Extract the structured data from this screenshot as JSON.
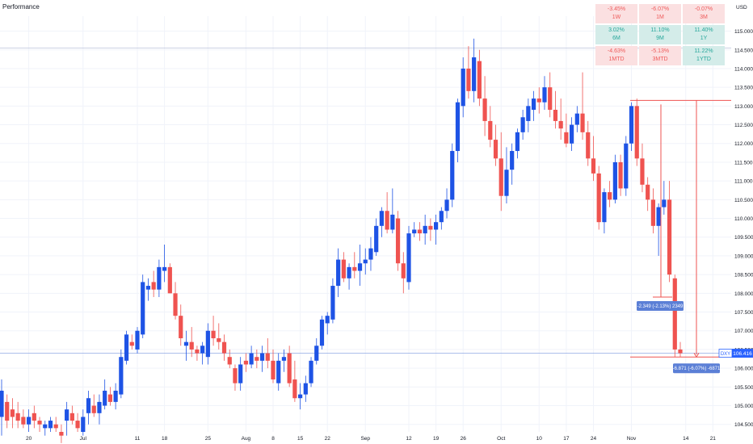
{
  "header": {
    "title": "Performance",
    "currency": "USD"
  },
  "performance": [
    {
      "value": "-3.45%",
      "label": "1W",
      "tone": "neg"
    },
    {
      "value": "-6.07%",
      "label": "1M",
      "tone": "neg"
    },
    {
      "value": "-0.07%",
      "label": "3M",
      "tone": "neg"
    },
    {
      "value": "3.02%",
      "label": "6M",
      "tone": "pos"
    },
    {
      "value": "11.10%",
      "label": "9M",
      "tone": "pos"
    },
    {
      "value": "11.40%",
      "label": "1Y",
      "tone": "pos"
    },
    {
      "value": "-4.63%",
      "label": "1MTD",
      "tone": "neg"
    },
    {
      "value": "-5.13%",
      "label": "3MTD",
      "tone": "neg"
    },
    {
      "value": "11.22%",
      "label": "1YTD",
      "tone": "pos"
    }
  ],
  "colors": {
    "up": "#1e53e5",
    "down": "#ef5350",
    "measure_line": "#ef5350",
    "label_bg": "#5b7fd6",
    "grid": "#f0f3fa",
    "axis_text": "#131722"
  },
  "chart_data": {
    "type": "candlestick",
    "symbol_label": "DXY",
    "last_price": "106.416",
    "ylim": [
      104.3,
      115.4
    ],
    "y_ticks": [
      "104.500",
      "105.000",
      "105.500",
      "106.000",
      "106.500",
      "107.000",
      "107.500",
      "108.000",
      "108.500",
      "109.000",
      "109.500",
      "110.000",
      "110.500",
      "111.000",
      "111.500",
      "112.000",
      "112.500",
      "113.000",
      "113.500",
      "114.000",
      "114.500",
      "115.000"
    ],
    "x_ticks": [
      "20",
      "Jul",
      "11",
      "18",
      "25",
      "Aug",
      "8",
      "15",
      "22",
      "Sep",
      "12",
      "19",
      "26",
      "Oct",
      "10",
      "17",
      "24",
      "Nov",
      "14",
      "21"
    ],
    "x_tick_candle_index": [
      5,
      15,
      25,
      30,
      38,
      45,
      50,
      55,
      60,
      67,
      75,
      80,
      85,
      92,
      99,
      104,
      109,
      116,
      126,
      131
    ],
    "candles": [
      [
        104.7,
        105.7,
        104.2,
        105.4
      ],
      [
        105.1,
        105.3,
        104.4,
        104.6
      ],
      [
        104.9,
        105.2,
        104.4,
        104.7
      ],
      [
        104.8,
        105.1,
        104.4,
        104.6
      ],
      [
        104.7,
        104.9,
        104.4,
        104.5
      ],
      [
        104.5,
        104.9,
        104.3,
        104.7
      ],
      [
        104.8,
        105.0,
        104.4,
        104.6
      ],
      [
        104.6,
        104.7,
        104.3,
        104.5
      ],
      [
        104.4,
        104.6,
        104.2,
        104.5
      ],
      [
        104.4,
        104.7,
        104.3,
        104.6
      ],
      [
        104.5,
        104.7,
        104.3,
        104.4
      ],
      [
        104.3,
        104.5,
        104.0,
        104.2
      ],
      [
        104.6,
        105.1,
        104.2,
        104.9
      ],
      [
        104.8,
        105.0,
        104.5,
        104.6
      ],
      [
        104.6,
        104.8,
        104.3,
        104.4
      ],
      [
        104.3,
        104.9,
        104.2,
        104.7
      ],
      [
        104.8,
        105.4,
        104.5,
        105.2
      ],
      [
        105.0,
        105.3,
        104.7,
        104.8
      ],
      [
        104.8,
        105.3,
        104.5,
        105.1
      ],
      [
        105.0,
        105.7,
        104.9,
        105.4
      ],
      [
        105.3,
        105.5,
        105.0,
        105.1
      ],
      [
        105.1,
        105.6,
        104.9,
        105.4
      ],
      [
        105.3,
        106.5,
        105.2,
        106.3
      ],
      [
        106.2,
        107.0,
        106.1,
        106.9
      ],
      [
        106.7,
        106.9,
        106.5,
        106.6
      ],
      [
        106.5,
        107.1,
        106.4,
        107.0
      ],
      [
        106.9,
        108.5,
        106.8,
        108.3
      ],
      [
        108.1,
        108.4,
        107.8,
        108.2
      ],
      [
        108.3,
        108.6,
        107.9,
        108.1
      ],
      [
        108.1,
        108.9,
        107.9,
        108.7
      ],
      [
        108.6,
        109.3,
        108.3,
        108.7
      ],
      [
        108.7,
        108.8,
        108.0,
        108.0
      ],
      [
        108.0,
        108.3,
        107.3,
        107.4
      ],
      [
        107.4,
        107.7,
        106.6,
        106.8
      ],
      [
        106.6,
        107.0,
        106.2,
        106.7
      ],
      [
        106.7,
        107.1,
        106.3,
        106.5
      ],
      [
        106.5,
        106.6,
        106.2,
        106.4
      ],
      [
        106.4,
        106.7,
        106.1,
        106.6
      ],
      [
        106.3,
        107.2,
        106.1,
        107.0
      ],
      [
        107.0,
        107.4,
        106.6,
        106.8
      ],
      [
        106.8,
        107.2,
        106.5,
        106.7
      ],
      [
        106.7,
        106.9,
        106.2,
        106.4
      ],
      [
        106.3,
        106.5,
        106.0,
        106.1
      ],
      [
        106.0,
        106.1,
        105.4,
        105.6
      ],
      [
        105.6,
        106.3,
        105.4,
        106.1
      ],
      [
        106.2,
        106.4,
        105.9,
        106.1
      ],
      [
        106.1,
        106.6,
        106.0,
        106.4
      ],
      [
        106.3,
        106.5,
        106.0,
        106.2
      ],
      [
        106.2,
        106.6,
        105.9,
        106.4
      ],
      [
        106.4,
        106.8,
        106.0,
        106.2
      ],
      [
        106.2,
        106.5,
        105.6,
        105.7
      ],
      [
        105.6,
        106.4,
        105.4,
        106.2
      ],
      [
        106.2,
        106.5,
        105.9,
        106.3
      ],
      [
        106.4,
        106.6,
        105.5,
        105.6
      ],
      [
        105.7,
        106.2,
        105.1,
        105.2
      ],
      [
        105.2,
        105.6,
        104.9,
        105.3
      ],
      [
        105.3,
        105.8,
        105.1,
        105.6
      ],
      [
        105.6,
        106.3,
        105.5,
        106.2
      ],
      [
        106.2,
        106.8,
        106.1,
        106.6
      ],
      [
        106.6,
        107.4,
        106.5,
        107.3
      ],
      [
        107.2,
        107.5,
        106.9,
        107.4
      ],
      [
        107.3,
        108.4,
        107.2,
        108.2
      ],
      [
        108.2,
        109.2,
        107.9,
        108.9
      ],
      [
        108.9,
        109.1,
        108.3,
        108.4
      ],
      [
        108.4,
        108.8,
        108.1,
        108.7
      ],
      [
        108.7,
        109.1,
        108.4,
        108.6
      ],
      [
        108.6,
        109.3,
        108.2,
        108.8
      ],
      [
        108.8,
        109.2,
        108.5,
        108.9
      ],
      [
        108.9,
        109.5,
        108.6,
        109.2
      ],
      [
        109.1,
        110.0,
        109.0,
        109.8
      ],
      [
        109.8,
        110.3,
        109.5,
        110.2
      ],
      [
        110.2,
        110.7,
        109.6,
        109.7
      ],
      [
        109.7,
        110.8,
        109.6,
        110.1
      ],
      [
        110.0,
        110.2,
        108.6,
        108.8
      ],
      [
        108.8,
        109.1,
        108.0,
        108.4
      ],
      [
        108.3,
        109.8,
        108.1,
        109.6
      ],
      [
        109.6,
        109.9,
        109.5,
        109.7
      ],
      [
        109.7,
        109.9,
        109.4,
        109.6
      ],
      [
        109.6,
        110.1,
        109.3,
        109.8
      ],
      [
        109.8,
        110.0,
        109.4,
        109.7
      ],
      [
        109.7,
        110.1,
        109.3,
        109.9
      ],
      [
        109.9,
        110.3,
        109.7,
        110.2
      ],
      [
        110.2,
        110.8,
        110.0,
        110.5
      ],
      [
        110.5,
        112.0,
        110.3,
        111.8
      ],
      [
        111.8,
        113.2,
        111.5,
        113.1
      ],
      [
        113.0,
        114.3,
        112.7,
        114.0
      ],
      [
        114.0,
        114.6,
        113.2,
        113.4
      ],
      [
        113.4,
        114.8,
        113.1,
        114.3
      ],
      [
        114.2,
        114.5,
        113.0,
        113.2
      ],
      [
        113.2,
        113.8,
        112.2,
        112.6
      ],
      [
        112.6,
        113.0,
        111.9,
        112.1
      ],
      [
        112.1,
        112.5,
        111.4,
        111.6
      ],
      [
        111.6,
        112.3,
        110.2,
        110.6
      ],
      [
        110.6,
        111.9,
        110.4,
        111.3
      ],
      [
        111.3,
        112.0,
        110.9,
        111.8
      ],
      [
        111.8,
        112.4,
        111.6,
        112.3
      ],
      [
        112.3,
        112.9,
        112.1,
        112.7
      ],
      [
        112.6,
        113.2,
        112.3,
        113.0
      ],
      [
        112.9,
        113.4,
        112.6,
        113.2
      ],
      [
        113.2,
        113.5,
        112.8,
        113.1
      ],
      [
        113.1,
        113.8,
        112.9,
        113.5
      ],
      [
        113.5,
        113.9,
        112.7,
        112.9
      ],
      [
        112.9,
        113.4,
        112.4,
        112.6
      ],
      [
        112.6,
        113.2,
        112.1,
        112.4
      ],
      [
        112.3,
        112.8,
        111.9,
        112.0
      ],
      [
        112.0,
        112.7,
        111.8,
        112.5
      ],
      [
        112.5,
        113.0,
        112.3,
        112.8
      ],
      [
        112.8,
        113.9,
        112.1,
        112.3
      ],
      [
        112.3,
        112.6,
        111.4,
        111.6
      ],
      [
        111.6,
        112.2,
        111.0,
        111.2
      ],
      [
        111.2,
        111.4,
        109.7,
        109.9
      ],
      [
        109.9,
        110.8,
        109.6,
        110.7
      ],
      [
        110.7,
        111.0,
        110.3,
        110.5
      ],
      [
        110.5,
        111.7,
        110.4,
        111.5
      ],
      [
        111.5,
        111.7,
        110.6,
        110.8
      ],
      [
        110.8,
        112.2,
        110.6,
        112.0
      ],
      [
        112.0,
        113.1,
        111.8,
        113.0
      ],
      [
        113.0,
        113.2,
        111.4,
        111.6
      ],
      [
        111.6,
        112.0,
        110.7,
        110.9
      ],
      [
        110.9,
        111.1,
        110.2,
        110.5
      ],
      [
        110.5,
        110.8,
        109.6,
        109.8
      ],
      [
        109.8,
        110.4,
        109.0,
        110.3
      ],
      [
        110.3,
        111.0,
        110.1,
        110.5
      ],
      [
        110.5,
        111.0,
        108.3,
        108.5
      ],
      [
        108.4,
        108.5,
        106.3,
        106.5
      ],
      [
        106.5,
        106.7,
        106.3,
        106.4
      ]
    ],
    "measure": {
      "upper_level": 113.15,
      "lower_level": 106.3,
      "mid_level": 107.9,
      "label_mid": "-2.349 (-2.13%) 2349",
      "label_low": "-6.871 (-6.07%) -6871"
    }
  }
}
